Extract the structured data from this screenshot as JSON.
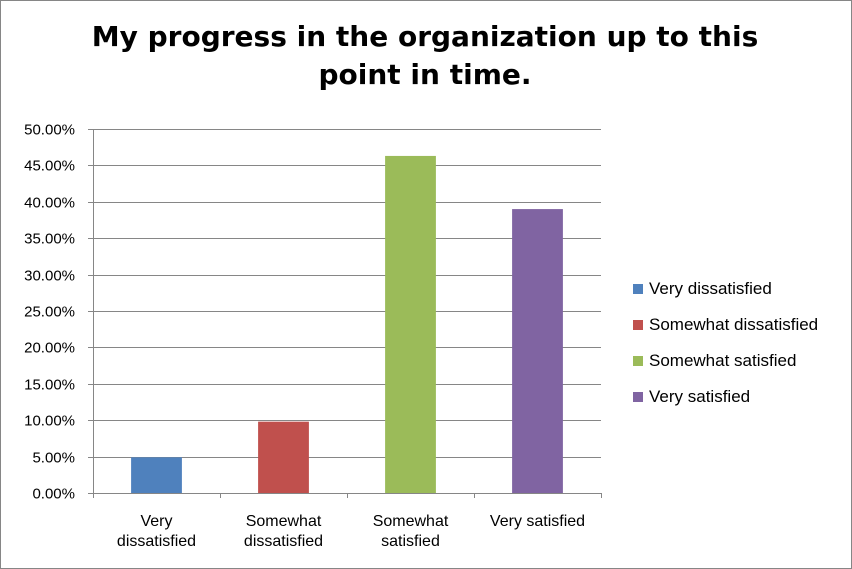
{
  "chart_data": {
    "type": "bar",
    "title_line1": "My progress in the organization up to this",
    "title_line2": "point in time.",
    "categories": [
      "Very dissatisfied",
      "Somewhat dissatisfied",
      "Somewhat satisfied",
      "Very satisfied"
    ],
    "category_label_lines": [
      [
        "Very",
        "dissatisfied"
      ],
      [
        "Somewhat",
        "dissatisfied"
      ],
      [
        "Somewhat",
        "satisfied"
      ],
      [
        "Very satisfied"
      ]
    ],
    "values": [
      0.049,
      0.098,
      0.463,
      0.39
    ],
    "colors": [
      "#4F81BD",
      "#C0504D",
      "#9BBB59",
      "#8064A2"
    ],
    "ylim": [
      0,
      0.5
    ],
    "yticks": [
      "0.00%",
      "5.00%",
      "10.00%",
      "15.00%",
      "20.00%",
      "25.00%",
      "30.00%",
      "35.00%",
      "40.00%",
      "45.00%",
      "50.00%"
    ],
    "grid": true,
    "legend_position": "right",
    "legend": [
      "Very dissatisfied",
      "Somewhat dissatisfied",
      "Somewhat satisfied",
      "Very satisfied"
    ]
  }
}
